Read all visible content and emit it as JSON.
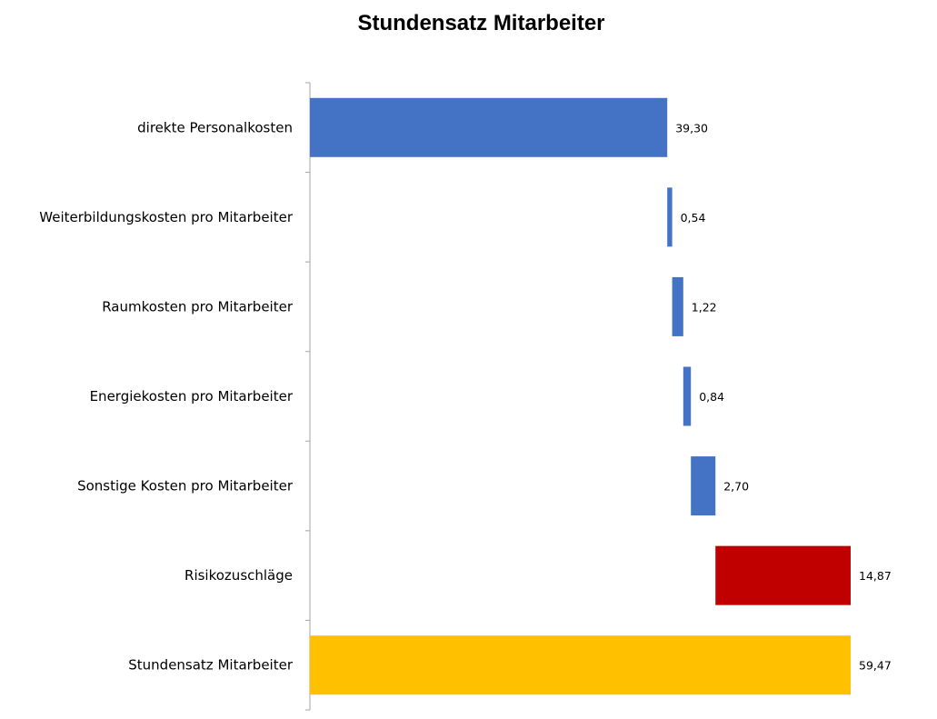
{
  "chart_data": {
    "type": "bar",
    "subtype": "waterfall-horizontal",
    "title": "Stundensatz Mitarbeiter",
    "categories": [
      "direkte Personalkosten",
      "Weiterbildungskosten pro Mitarbeiter",
      "Raumkosten pro Mitarbeiter",
      "Energiekosten pro Mitarbeiter",
      "Sonstige Kosten pro Mitarbeiter",
      "Risikozuschläge",
      "Stundensatz Mitarbeiter"
    ],
    "values": [
      39.3,
      0.54,
      1.22,
      0.84,
      2.7,
      14.87,
      59.47
    ],
    "value_labels": [
      "39,30",
      "0,54",
      "1,22",
      "0,84",
      "2,70",
      "14,87",
      "59,47"
    ],
    "bar_kinds": [
      "start",
      "increase",
      "increase",
      "increase",
      "increase",
      "increase",
      "total"
    ],
    "colors": {
      "start": "#4472C4",
      "increase": "#4472C4",
      "risk": "#C00000",
      "total": "#FFC000"
    },
    "bar_colors": [
      "#4472C4",
      "#4472C4",
      "#4472C4",
      "#4472C4",
      "#4472C4",
      "#C00000",
      "#FFC000"
    ],
    "xlim": [
      0,
      59.47
    ],
    "grid": false,
    "legend": "none",
    "xlabel": "",
    "ylabel": ""
  }
}
